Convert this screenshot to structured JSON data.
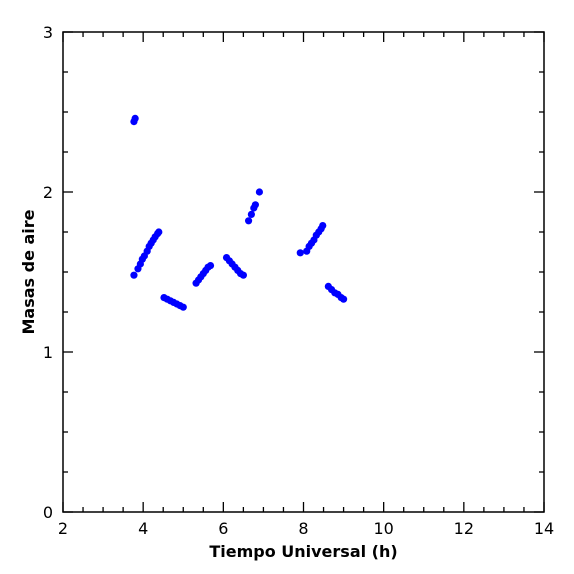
{
  "chart_data": {
    "type": "scatter",
    "xlabel": "Tiempo Universal (h)",
    "ylabel": "Masas de aire",
    "xlim": [
      2,
      14
    ],
    "ylim": [
      0,
      3
    ],
    "x_major_ticks": [
      2,
      4,
      6,
      8,
      10,
      12,
      14
    ],
    "x_tick_labels": [
      "2",
      "4",
      "6",
      "8",
      "10",
      "12",
      "14"
    ],
    "x_minor_step": 0.5,
    "y_major_ticks": [
      0,
      1,
      2,
      3
    ],
    "y_tick_labels": [
      "0",
      "1",
      "2",
      "3"
    ],
    "y_minor_step": 0.25,
    "grid": false,
    "marker_color": "#0000ff",
    "series": [
      {
        "points": [
          [
            3.77,
            2.44
          ],
          [
            3.8,
            2.46
          ],
          [
            3.77,
            1.48
          ],
          [
            3.87,
            1.52
          ],
          [
            3.93,
            1.55
          ],
          [
            3.98,
            1.58
          ],
          [
            4.03,
            1.6
          ],
          [
            4.1,
            1.63
          ],
          [
            4.15,
            1.66
          ],
          [
            4.2,
            1.68
          ],
          [
            4.25,
            1.7
          ],
          [
            4.3,
            1.72
          ],
          [
            4.36,
            1.74
          ],
          [
            4.39,
            1.75
          ],
          [
            4.52,
            1.34
          ],
          [
            4.6,
            1.33
          ],
          [
            4.68,
            1.32
          ],
          [
            4.76,
            1.31
          ],
          [
            4.84,
            1.3
          ],
          [
            4.92,
            1.29
          ],
          [
            5.0,
            1.28
          ],
          [
            5.32,
            1.43
          ],
          [
            5.38,
            1.45
          ],
          [
            5.44,
            1.47
          ],
          [
            5.5,
            1.49
          ],
          [
            5.56,
            1.51
          ],
          [
            5.62,
            1.53
          ],
          [
            5.68,
            1.54
          ],
          [
            6.08,
            1.59
          ],
          [
            6.15,
            1.57
          ],
          [
            6.22,
            1.55
          ],
          [
            6.29,
            1.53
          ],
          [
            6.36,
            1.51
          ],
          [
            6.43,
            1.49
          ],
          [
            6.5,
            1.48
          ],
          [
            6.63,
            1.82
          ],
          [
            6.7,
            1.86
          ],
          [
            6.76,
            1.9
          ],
          [
            6.8,
            1.92
          ],
          [
            6.9,
            2.0
          ],
          [
            7.92,
            1.62
          ],
          [
            8.08,
            1.63
          ],
          [
            8.14,
            1.66
          ],
          [
            8.2,
            1.68
          ],
          [
            8.26,
            1.7
          ],
          [
            8.32,
            1.73
          ],
          [
            8.38,
            1.75
          ],
          [
            8.44,
            1.77
          ],
          [
            8.48,
            1.79
          ],
          [
            8.62,
            1.41
          ],
          [
            8.7,
            1.39
          ],
          [
            8.78,
            1.37
          ],
          [
            8.86,
            1.36
          ],
          [
            8.94,
            1.34
          ],
          [
            9.0,
            1.33
          ]
        ]
      }
    ]
  }
}
